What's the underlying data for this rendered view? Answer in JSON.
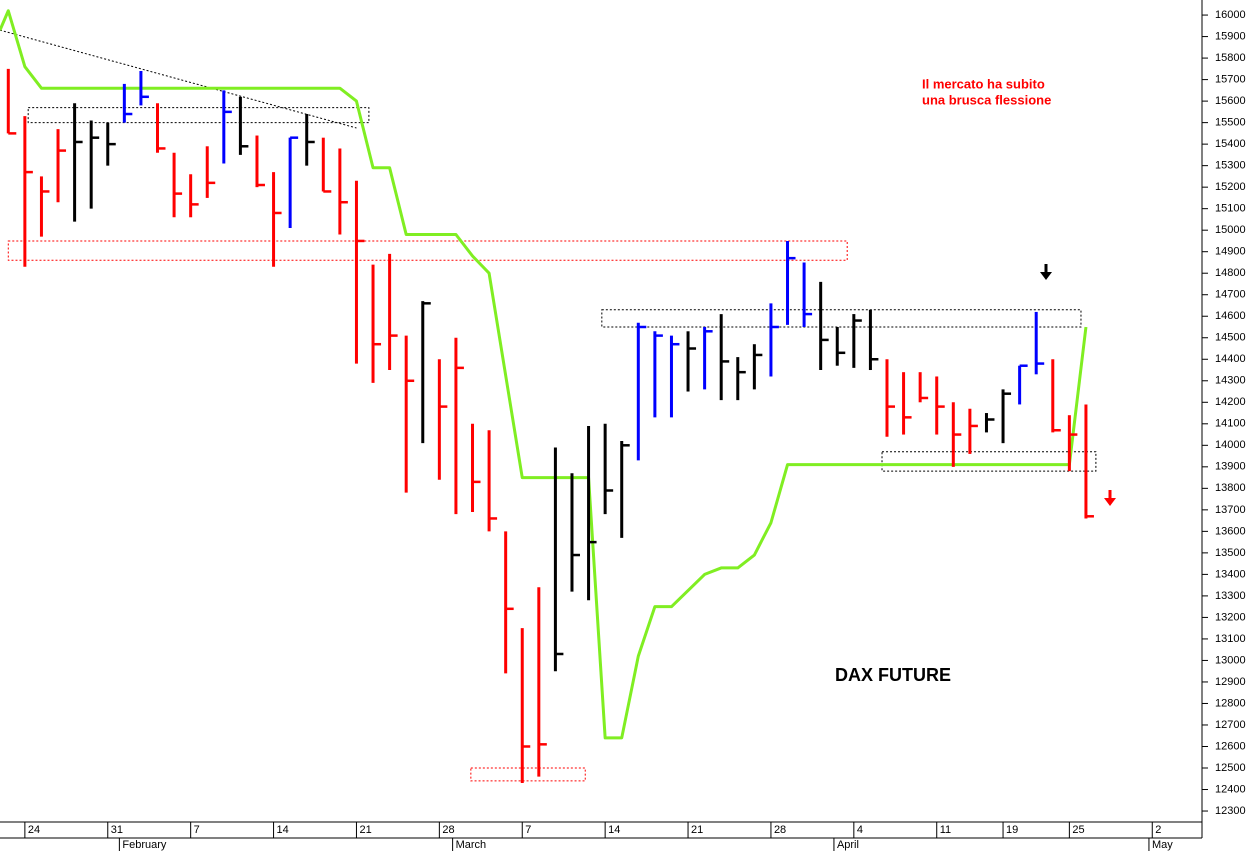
{
  "chart_data": {
    "type": "hlc",
    "title": "DAX FUTURE",
    "annotation": [
      "Il mercato ha subito",
      "una brusca flessione"
    ],
    "palette": {
      "r": "#ff0000",
      "b": "#0000ff",
      "k": "#000000"
    },
    "bars": {
      "high": [
        15750,
        15530,
        15250,
        15470,
        15590,
        15510,
        15500,
        15680,
        15740,
        15590,
        15360,
        15260,
        15390,
        15650,
        15620,
        15440,
        15270,
        15430,
        15540,
        15430,
        15380,
        15230,
        14840,
        14890,
        14510,
        14670,
        14400,
        14500,
        14100,
        14070,
        13600,
        13150,
        13340,
        13990,
        13870,
        14090,
        14100,
        14020,
        14570,
        14530,
        14510,
        14530,
        14550,
        14610,
        14410,
        14470,
        14660,
        14950,
        14850,
        14760,
        14550,
        14610,
        14630,
        14400,
        14340,
        14340,
        14320,
        14200,
        14170,
        14150,
        14260,
        14370,
        14620,
        14400,
        14140,
        14190
      ],
      "low": [
        15450,
        14830,
        14970,
        15130,
        15040,
        15100,
        15300,
        15500,
        15580,
        15360,
        15060,
        15060,
        15150,
        15310,
        15350,
        15200,
        14830,
        15010,
        15300,
        15180,
        14980,
        14380,
        14290,
        14350,
        13780,
        14010,
        13840,
        13680,
        13690,
        13600,
        12940,
        12430,
        12460,
        12950,
        13320,
        13280,
        13680,
        13570,
        13930,
        14130,
        14130,
        14250,
        14260,
        14210,
        14210,
        14260,
        14320,
        14560,
        14550,
        14350,
        14370,
        14360,
        14350,
        14040,
        14050,
        14200,
        14050,
        13900,
        13960,
        14060,
        14010,
        14190,
        14330,
        14060,
        13880,
        13660
      ],
      "close": [
        15450,
        15270,
        15180,
        15370,
        15410,
        15430,
        15400,
        15540,
        15620,
        15380,
        15170,
        15120,
        15220,
        15550,
        15390,
        15210,
        15080,
        15430,
        15410,
        15180,
        15130,
        14950,
        14470,
        14510,
        14300,
        14660,
        14180,
        14360,
        13830,
        13660,
        13240,
        12600,
        12610,
        13030,
        13490,
        13550,
        13790,
        14000,
        14550,
        14510,
        14470,
        14450,
        14530,
        14390,
        14340,
        14420,
        14550,
        14870,
        14610,
        14490,
        14430,
        14580,
        14400,
        14180,
        14130,
        14220,
        14180,
        14050,
        14090,
        14120,
        14240,
        14370,
        14380,
        14070,
        14050,
        13670
      ],
      "colors": [
        "r",
        "r",
        "r",
        "r",
        "k",
        "k",
        "k",
        "b",
        "b",
        "r",
        "r",
        "r",
        "r",
        "b",
        "k",
        "r",
        "r",
        "b",
        "k",
        "r",
        "r",
        "r",
        "r",
        "r",
        "r",
        "k",
        "r",
        "r",
        "r",
        "r",
        "r",
        "r",
        "r",
        "k",
        "k",
        "k",
        "k",
        "k",
        "b",
        "b",
        "b",
        "k",
        "b",
        "k",
        "k",
        "k",
        "b",
        "b",
        "b",
        "k",
        "k",
        "k",
        "k",
        "r",
        "r",
        "r",
        "r",
        "r",
        "r",
        "k",
        "k",
        "b",
        "b",
        "r",
        "r",
        "r"
      ]
    },
    "stop_line": {
      "color": "#80ee22",
      "x": [
        -0.5,
        0,
        1,
        2,
        20,
        21,
        22,
        23,
        24,
        27,
        28,
        29,
        31,
        35,
        36,
        37,
        38,
        39,
        40,
        42,
        43,
        44,
        45,
        46,
        47,
        64,
        65
      ],
      "values": [
        15930,
        16020,
        15760,
        15660,
        15660,
        15600,
        15290,
        15290,
        14980,
        14980,
        14880,
        14800,
        13850,
        13850,
        12640,
        12640,
        13020,
        13250,
        13250,
        13400,
        13430,
        13430,
        13490,
        13640,
        13910,
        13910,
        14550
      ]
    },
    "zones": [
      {
        "x": [
          1.2,
          21.75
        ],
        "y": [
          15500,
          15570
        ],
        "color": "#000000"
      },
      {
        "x": [
          0,
          50.6
        ],
        "y": [
          14860,
          14950
        ],
        "color": "#ff0000"
      },
      {
        "x": [
          35.8,
          64.7
        ],
        "y": [
          14550,
          14630
        ],
        "color": "#000000"
      },
      {
        "x": [
          52.7,
          65.6
        ],
        "y": [
          13880,
          13970
        ],
        "color": "#000000"
      },
      {
        "x": [
          27.9,
          34.8
        ],
        "y": [
          12440,
          12500
        ],
        "color": "#ff0000"
      }
    ],
    "trendline": {
      "x": [
        -0.5,
        21.0
      ],
      "y": [
        15930,
        15475
      ]
    },
    "xlim": [
      -0.5,
      72
    ],
    "ylim": [
      12249,
      16070
    ],
    "xticks": [
      {
        "value": 1,
        "label": "24"
      },
      {
        "value": 6,
        "label": "31"
      },
      {
        "value": 11,
        "label": "7"
      },
      {
        "value": 16,
        "label": "14"
      },
      {
        "value": 21,
        "label": "21"
      },
      {
        "value": 26,
        "label": "28"
      },
      {
        "value": 31,
        "label": "7"
      },
      {
        "value": 36,
        "label": "14"
      },
      {
        "value": 41,
        "label": "21"
      },
      {
        "value": 46,
        "label": "28"
      },
      {
        "value": 51,
        "label": "4"
      },
      {
        "value": 56,
        "label": "11"
      },
      {
        "value": 60,
        "label": "19"
      },
      {
        "value": 64,
        "label": "25"
      },
      {
        "value": 69,
        "label": "2"
      }
    ],
    "month_ticks": [
      {
        "value": 6.7,
        "label": "February"
      },
      {
        "value": 26.8,
        "label": "March"
      },
      {
        "value": 49.8,
        "label": "April"
      },
      {
        "value": 68.8,
        "label": "May"
      }
    ],
    "yticks": [
      12300,
      12400,
      12500,
      12600,
      12700,
      12800,
      12900,
      13000,
      13100,
      13200,
      13300,
      13400,
      13500,
      13600,
      13700,
      13800,
      13900,
      14000,
      14100,
      14200,
      14300,
      14400,
      14500,
      14600,
      14700,
      14800,
      14900,
      15000,
      15100,
      15200,
      15300,
      15400,
      15500,
      15600,
      15700,
      15800,
      15900,
      16000
    ]
  }
}
